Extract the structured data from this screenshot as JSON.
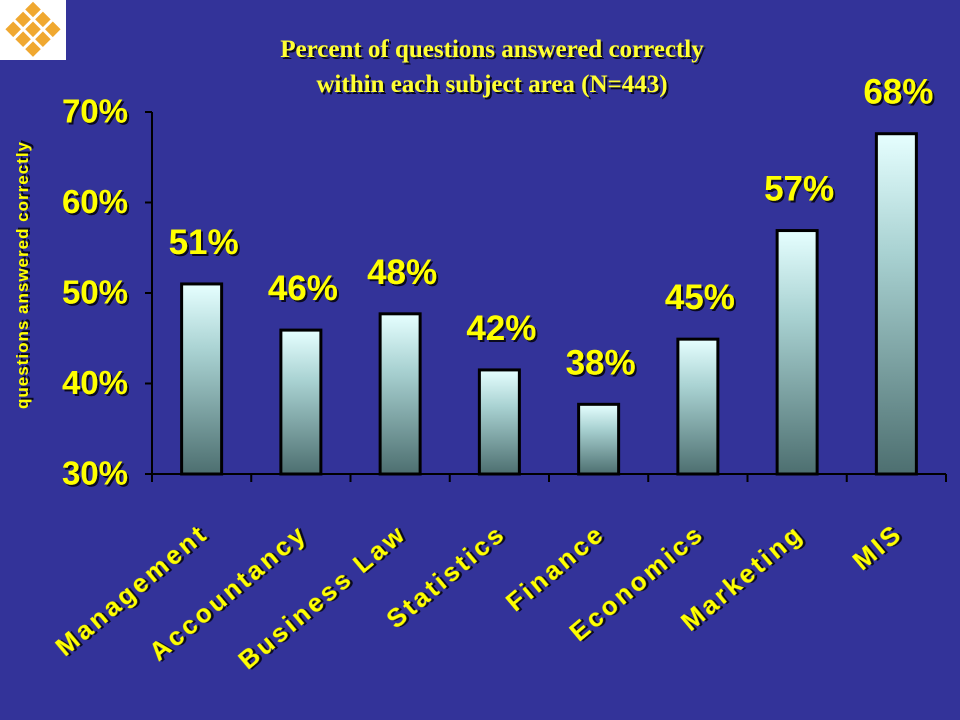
{
  "chart_data": {
    "type": "bar",
    "title": [
      "Percent of questions answered correctly",
      "within each subject area (N=443)"
    ],
    "y_label": "questions answered correctly",
    "categories": [
      "Management",
      "Accountancy",
      "Business Law",
      "Statistics",
      "Finance",
      "Economics",
      "Marketing",
      "MIS"
    ],
    "values": [
      51.0,
      45.9,
      47.7,
      41.5,
      37.7,
      44.9,
      56.9,
      67.6
    ],
    "value_labels": [
      "51%",
      "46%",
      "48%",
      "42%",
      "38%",
      "45%",
      "57%",
      "68%"
    ],
    "ylim": [
      30,
      70
    ],
    "yticks": [
      {
        "value": 30,
        "label": "30%"
      },
      {
        "value": 40,
        "label": "40%"
      },
      {
        "value": 50,
        "label": "50%"
      },
      {
        "value": 60,
        "label": "60%"
      },
      {
        "value": 70,
        "label": "70%"
      }
    ],
    "grid": false
  }
}
